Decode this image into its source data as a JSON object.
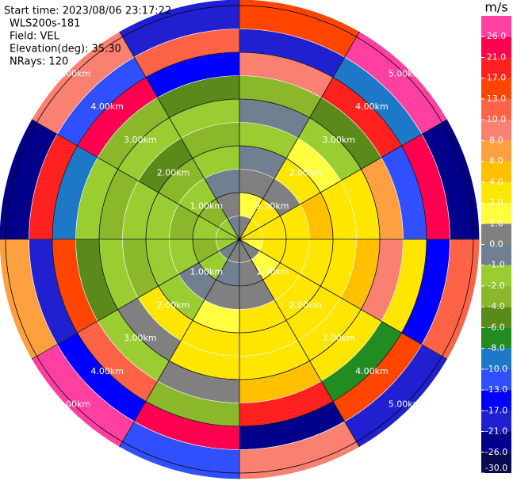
{
  "info": {
    "start_time": "Start time: 2023/08/06 23:17:22",
    "instrument": "WLS200s-181",
    "field": "Field: VEL",
    "elevation": "Elevation(deg): 35.30",
    "nrays": "NRays: 120"
  },
  "radar": {
    "azimuths_deg": [
      0,
      30,
      60,
      90,
      120,
      150,
      180,
      210,
      240,
      270,
      300,
      330
    ],
    "gates_km": [
      0,
      0.5,
      1,
      1.5,
      2,
      2.5,
      3,
      3.5,
      4,
      4.5,
      5.13
    ],
    "values": [
      [
        0,
        1,
        0,
        -1,
        -2,
        -1,
        -4,
        8,
        -21,
        13
      ],
      [
        2,
        2,
        0,
        2,
        1,
        -2,
        -6,
        17,
        -10,
        26
      ],
      [
        2,
        2,
        2,
        4,
        2,
        2,
        6,
        -13,
        21,
        -26
      ],
      [
        1,
        2,
        2,
        2,
        2,
        4,
        8,
        2,
        -17,
        10
      ],
      [
        0,
        1,
        2,
        2,
        2,
        2,
        2,
        -8,
        13,
        -21
      ],
      [
        0,
        0,
        0,
        2,
        2,
        2,
        4,
        17,
        -26,
        8
      ],
      [
        0,
        -1,
        0,
        1,
        2,
        2,
        0,
        -4,
        21,
        -13
      ],
      [
        -1,
        -2,
        -1,
        -2,
        2,
        0,
        -2,
        10,
        -17,
        26
      ],
      [
        -2,
        -4,
        -2,
        -2,
        -4,
        -2,
        -6,
        13,
        -21,
        6
      ],
      [
        -2,
        -2,
        -4,
        -2,
        -2,
        -4,
        -2,
        -10,
        17,
        -26
      ],
      [
        -2,
        -4,
        -2,
        -4,
        -6,
        -2,
        -4,
        21,
        -13,
        8
      ],
      [
        -1,
        0,
        -1,
        -2,
        -4,
        -2,
        -6,
        -17,
        10,
        -21
      ]
    ],
    "range_rings_km": [
      {
        "value": 1,
        "label": "1.00km"
      },
      {
        "value": 2,
        "label": "2.00km"
      },
      {
        "value": 3,
        "label": "3.00km"
      },
      {
        "value": 4,
        "label": "4.00km"
      },
      {
        "value": 5,
        "label": "5.00km"
      }
    ]
  },
  "colorbar": {
    "unit": "m/s",
    "levels": [
      -30,
      -26,
      -21,
      -17,
      -13,
      -10,
      -8,
      -6,
      -4,
      -2,
      -1,
      0,
      1,
      2,
      4,
      6,
      8,
      10,
      13,
      17,
      21,
      26,
      30
    ],
    "colors": [
      "#0a0a50",
      "#00008b",
      "#2020d0",
      "#0000ff",
      "#3050ff",
      "#1e78c8",
      "#228b22",
      "#5a8a1a",
      "#8ab82a",
      "#9acd32",
      "#708090",
      "#808080",
      "#ffff40",
      "#ffe600",
      "#ffc000",
      "#ffa040",
      "#fa8072",
      "#ff6347",
      "#ff4500",
      "#ff2020",
      "#ff0050",
      "#ff40a0"
    ],
    "ticks": [
      {
        "value": -30,
        "label": "-30.0"
      },
      {
        "value": -26,
        "label": "-26.0"
      },
      {
        "value": -21,
        "label": "-21.0"
      },
      {
        "value": -17,
        "label": "-17.0"
      },
      {
        "value": -13,
        "label": "-13.0"
      },
      {
        "value": -10,
        "label": "-10.0"
      },
      {
        "value": -8,
        "label": "-8.0"
      },
      {
        "value": -6,
        "label": "-6.0"
      },
      {
        "value": -4,
        "label": "-4.0"
      },
      {
        "value": -2,
        "label": "-2.0"
      },
      {
        "value": -1,
        "label": "-1.0"
      },
      {
        "value": 0,
        "label": "0.0"
      },
      {
        "value": 1,
        "label": "1.0"
      },
      {
        "value": 2,
        "label": "2.0"
      },
      {
        "value": 4,
        "label": "4.0"
      },
      {
        "value": 6,
        "label": "6.0"
      },
      {
        "value": 8,
        "label": "8.0"
      },
      {
        "value": 10,
        "label": "10.0"
      },
      {
        "value": 13,
        "label": "13.0"
      },
      {
        "value": 17,
        "label": "17.0"
      },
      {
        "value": 21,
        "label": "21.0"
      },
      {
        "value": 26,
        "label": "26.0"
      }
    ]
  }
}
